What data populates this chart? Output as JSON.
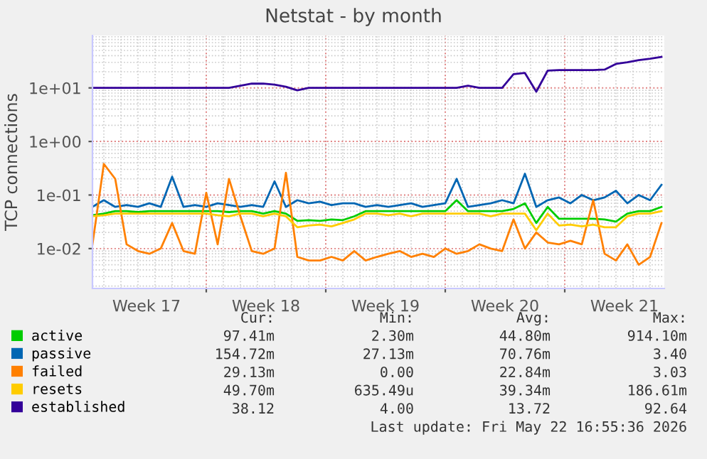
{
  "chart_data": {
    "type": "line",
    "title": "Netstat - by month",
    "ylabel": "TCP connections",
    "x": [
      "2026-04-19T08:00",
      "2026-04-20T00:00",
      "2026-04-20T16:00",
      "2026-04-21T08:00",
      "2026-04-22T00:00",
      "2026-04-22T16:00",
      "2026-04-23T08:00",
      "2026-04-24T00:00",
      "2026-04-24T16:00",
      "2026-04-25T08:00",
      "2026-04-26T00:00",
      "2026-04-26T16:00",
      "2026-04-27T08:00",
      "2026-04-28T00:00",
      "2026-04-28T16:00",
      "2026-04-29T08:00",
      "2026-04-30T00:00",
      "2026-04-30T16:00",
      "2026-05-01T08:00",
      "2026-05-02T00:00",
      "2026-05-02T16:00",
      "2026-05-03T08:00",
      "2026-05-04T00:00",
      "2026-05-04T16:00",
      "2026-05-05T08:00",
      "2026-05-06T00:00",
      "2026-05-06T16:00",
      "2026-05-07T08:00",
      "2026-05-08T00:00",
      "2026-05-08T16:00",
      "2026-05-09T08:00",
      "2026-05-10T00:00",
      "2026-05-10T16:00",
      "2026-05-11T08:00",
      "2026-05-12T00:00",
      "2026-05-12T16:00",
      "2026-05-13T08:00",
      "2026-05-14T00:00",
      "2026-05-14T16:00",
      "2026-05-15T08:00",
      "2026-05-16T00:00",
      "2026-05-16T16:00",
      "2026-05-17T08:00",
      "2026-05-18T00:00",
      "2026-05-18T16:00",
      "2026-05-19T08:00",
      "2026-05-20T00:00",
      "2026-05-20T16:00",
      "2026-05-21T08:00",
      "2026-05-22T00:00",
      "2026-05-22T16:00"
    ],
    "series": [
      {
        "name": "active",
        "color": "#00cc00",
        "values": [
          0.042,
          0.045,
          0.05,
          0.05,
          0.048,
          0.05,
          0.05,
          0.05,
          0.05,
          0.05,
          0.05,
          0.05,
          0.048,
          0.05,
          0.05,
          0.045,
          0.05,
          0.045,
          0.033,
          0.034,
          0.033,
          0.035,
          0.034,
          0.04,
          0.05,
          0.05,
          0.05,
          0.05,
          0.05,
          0.05,
          0.05,
          0.05,
          0.08,
          0.05,
          0.05,
          0.05,
          0.05,
          0.055,
          0.07,
          0.03,
          0.06,
          0.036,
          0.036,
          0.036,
          0.036,
          0.035,
          0.032,
          0.045,
          0.05,
          0.05,
          0.06
        ]
      },
      {
        "name": "passive",
        "color": "#0066b3",
        "values": [
          0.06,
          0.08,
          0.06,
          0.065,
          0.06,
          0.07,
          0.06,
          0.22,
          0.06,
          0.065,
          0.06,
          0.07,
          0.065,
          0.06,
          0.065,
          0.06,
          0.18,
          0.06,
          0.08,
          0.07,
          0.075,
          0.065,
          0.07,
          0.07,
          0.06,
          0.065,
          0.06,
          0.065,
          0.07,
          0.06,
          0.065,
          0.07,
          0.2,
          0.06,
          0.065,
          0.07,
          0.08,
          0.07,
          0.25,
          0.06,
          0.08,
          0.09,
          0.07,
          0.1,
          0.08,
          0.09,
          0.12,
          0.07,
          0.1,
          0.08,
          0.155
        ]
      },
      {
        "name": "failed",
        "color": "#ff8000",
        "values": [
          0.012,
          0.38,
          0.2,
          0.012,
          0.009,
          0.008,
          0.01,
          0.03,
          0.009,
          0.008,
          0.11,
          0.012,
          0.2,
          0.04,
          0.009,
          0.008,
          0.01,
          0.26,
          0.007,
          0.006,
          0.006,
          0.007,
          0.006,
          0.009,
          0.006,
          0.007,
          0.008,
          0.009,
          0.007,
          0.008,
          0.007,
          0.01,
          0.008,
          0.009,
          0.012,
          0.01,
          0.009,
          0.035,
          0.01,
          0.02,
          0.013,
          0.012,
          0.014,
          0.012,
          0.08,
          0.008,
          0.006,
          0.012,
          0.005,
          0.007,
          0.03
        ]
      },
      {
        "name": "resets",
        "color": "#ffcc00",
        "values": [
          0.04,
          0.042,
          0.045,
          0.045,
          0.045,
          0.045,
          0.045,
          0.045,
          0.045,
          0.045,
          0.045,
          0.042,
          0.04,
          0.045,
          0.045,
          0.04,
          0.045,
          0.04,
          0.025,
          0.027,
          0.028,
          0.026,
          0.03,
          0.035,
          0.045,
          0.045,
          0.042,
          0.045,
          0.04,
          0.045,
          0.045,
          0.045,
          0.045,
          0.045,
          0.045,
          0.04,
          0.045,
          0.045,
          0.045,
          0.022,
          0.045,
          0.027,
          0.028,
          0.026,
          0.028,
          0.025,
          0.025,
          0.04,
          0.045,
          0.045,
          0.05
        ]
      },
      {
        "name": "established",
        "color": "#330099",
        "values": [
          10,
          10,
          10,
          10,
          10,
          10,
          10,
          10,
          10,
          10,
          10,
          10,
          10,
          11,
          12,
          12,
          11.5,
          10.5,
          9,
          10,
          10,
          10,
          10,
          10,
          10,
          10,
          10,
          10,
          10,
          10,
          10,
          10,
          10,
          11,
          10,
          10,
          10,
          18,
          19,
          8.5,
          21,
          21.5,
          21.5,
          21.5,
          21.5,
          22,
          28,
          30,
          33,
          35,
          38
        ]
      }
    ],
    "xlim": [
      "2026-04-19T08:00",
      "2026-05-22T20:00"
    ],
    "xticks": [
      {
        "value": "2026-04-22T12:00",
        "label": "Week 17"
      },
      {
        "value": "2026-04-26T00:00",
        "label": null
      },
      {
        "value": "2026-04-29T12:00",
        "label": "Week 18"
      },
      {
        "value": "2026-05-03T00:00",
        "label": null
      },
      {
        "value": "2026-05-06T12:00",
        "label": "Week 19"
      },
      {
        "value": "2026-05-10T00:00",
        "label": null
      },
      {
        "value": "2026-05-13T12:00",
        "label": "Week 20"
      },
      {
        "value": "2026-05-17T00:00",
        "label": null
      },
      {
        "value": "2026-05-20T12:00",
        "label": "Week 21"
      }
    ],
    "ylim": [
      0.0018,
      95
    ],
    "log": true,
    "yticks": [
      {
        "value": 0.01,
        "label": "1e-02"
      },
      {
        "value": 0.1,
        "label": "1e-01"
      },
      {
        "value": 1,
        "label": "1e+00"
      },
      {
        "value": 10,
        "label": "1e+01"
      }
    ],
    "grid": true,
    "legend": "bottom",
    "line_style": "solid",
    "marker": "none",
    "annotations": [
      "Cur:",
      "Min:",
      "Avg:",
      "Max:",
      "97.41m",
      "2.30m",
      "44.80m",
      "914.10m",
      "154.72m",
      "27.13m",
      "70.76m",
      "3.40",
      "29.13m",
      "0.00",
      "22.84m",
      "3.03",
      "49.70m",
      "635.49u",
      "39.34m",
      "186.61m",
      "38.12",
      "4.00",
      "13.72",
      "92.64",
      "Last update: Fri May 22 16:55:36 2026"
    ]
  }
}
